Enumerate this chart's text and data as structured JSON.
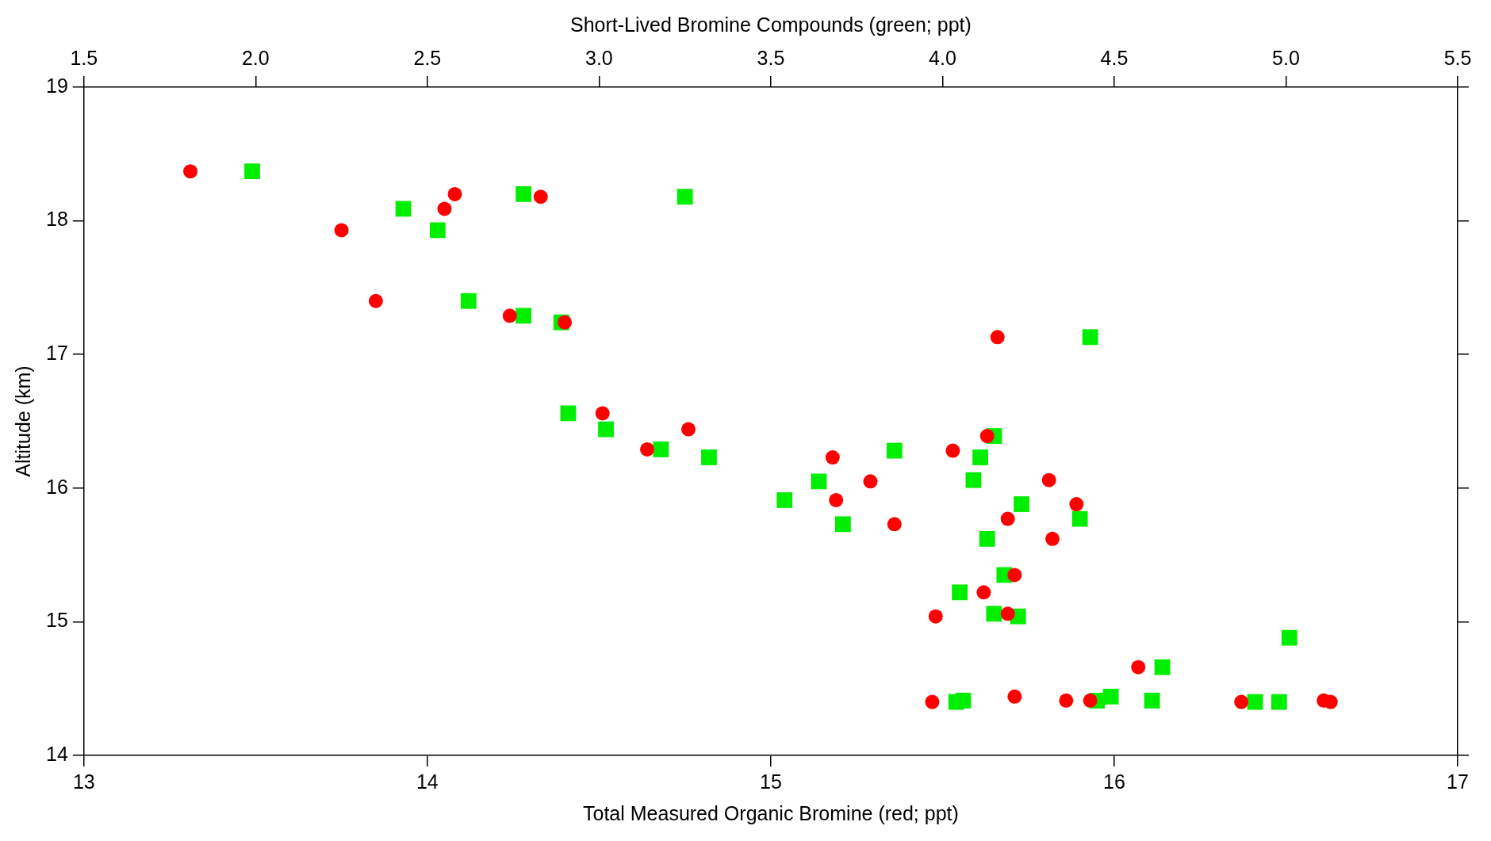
{
  "chart_data": {
    "type": "scatter",
    "xlabel": "Total Measured Organic Bromine (red; ppt)",
    "x2label": "Short-Lived Bromine Compounds (green; ppt)",
    "ylabel": "Altitude (km)",
    "xlim": [
      13,
      17
    ],
    "xticks": [
      13,
      14,
      15,
      16,
      17
    ],
    "x2lim": [
      1.5,
      5.5
    ],
    "x2ticks": [
      {
        "value": 1.5,
        "label": "1.5"
      },
      {
        "value": 2,
        "label": "2.0"
      },
      {
        "value": 2.5,
        "label": "2.5"
      },
      {
        "value": 3,
        "label": "3.0"
      },
      {
        "value": 3.5,
        "label": "3.5"
      },
      {
        "value": 4,
        "label": "4.0"
      },
      {
        "value": 4.5,
        "label": "4.5"
      },
      {
        "value": 5,
        "label": "5.0"
      },
      {
        "value": 5.5,
        "label": "5.5"
      }
    ],
    "ylim": [
      14,
      19
    ],
    "yticks": [
      14,
      15,
      16,
      17,
      18,
      19
    ],
    "grid": false,
    "legend": false,
    "series": [
      {
        "color": "#ff0000",
        "marker": "circle",
        "x": [
          13.31,
          13.75,
          13.85,
          14.05,
          14.08,
          14.24,
          14.33,
          14.4,
          14.51,
          14.64,
          14.76,
          15.18,
          15.19,
          15.29,
          15.36,
          15.48,
          15.47,
          15.53,
          15.62,
          15.63,
          15.66,
          15.69,
          15.69,
          15.71,
          15.71,
          15.81,
          15.82,
          15.86,
          15.89,
          15.93,
          16.07,
          16.37,
          16.61,
          16.63
        ],
        "values": [
          18.37,
          17.93,
          17.4,
          18.09,
          18.2,
          17.29,
          18.18,
          17.24,
          16.56,
          16.29,
          16.44,
          16.23,
          15.91,
          16.05,
          15.73,
          15.04,
          14.4,
          16.28,
          15.22,
          16.39,
          17.13,
          15.77,
          15.06,
          15.35,
          14.44,
          16.06,
          15.62,
          14.41,
          15.88,
          14.41,
          14.66,
          14.4,
          14.41,
          14.4
        ]
      },
      {
        "color": "#00ee00",
        "marker": "square",
        "axis": "x2",
        "x": [
          1.99,
          2.43,
          2.53,
          2.62,
          2.78,
          2.78,
          2.89,
          2.91,
          3.02,
          3.18,
          3.25,
          3.32,
          3.54,
          3.64,
          3.71,
          3.86,
          4.04,
          4.05,
          4.06,
          4.09,
          4.11,
          4.13,
          4.15,
          4.15,
          4.18,
          4.22,
          4.23,
          4.4,
          4.43,
          4.45,
          4.49,
          4.61,
          4.64,
          4.91,
          4.98,
          5.01
        ],
        "values": [
          18.37,
          18.09,
          17.93,
          17.4,
          18.2,
          17.29,
          17.24,
          16.56,
          16.44,
          16.29,
          18.18,
          16.23,
          15.91,
          16.05,
          15.73,
          16.28,
          14.4,
          15.22,
          14.41,
          16.06,
          16.23,
          15.62,
          16.39,
          15.06,
          15.35,
          15.04,
          15.88,
          15.77,
          17.13,
          14.41,
          14.44,
          14.41,
          14.66,
          14.4,
          14.4,
          14.88
        ]
      }
    ]
  }
}
